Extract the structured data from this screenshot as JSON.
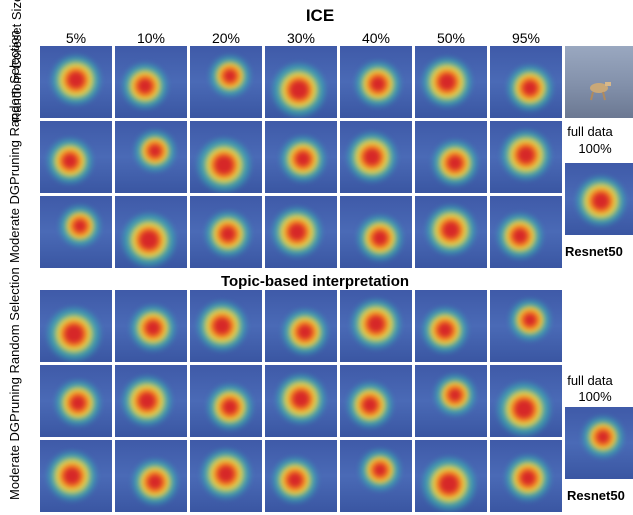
{
  "top": {
    "title": "ICE",
    "percentages": [
      "5%",
      "10%",
      "20%",
      "30%",
      "40%",
      "50%",
      "95%"
    ],
    "row_labels": [
      "Random Coreset Size",
      "Moderate DGPruning Random Selection"
    ],
    "side_caption_line1": "full data",
    "side_caption_line2": "100%",
    "side_model": "Resnet50"
  },
  "bottom": {
    "title": "Topic-based interpretation",
    "row_labels": [
      "Moderate DGPruning Random Selection"
    ],
    "side_caption_line1": "full data",
    "side_caption_line2": "100%",
    "side_model": "Resnet50"
  },
  "colors": {
    "hot": "#d62728",
    "warm": "#ff9f1c",
    "mid": "#f6e04c",
    "cool": "#37c2b0",
    "bg": "#3f5aa8"
  }
}
